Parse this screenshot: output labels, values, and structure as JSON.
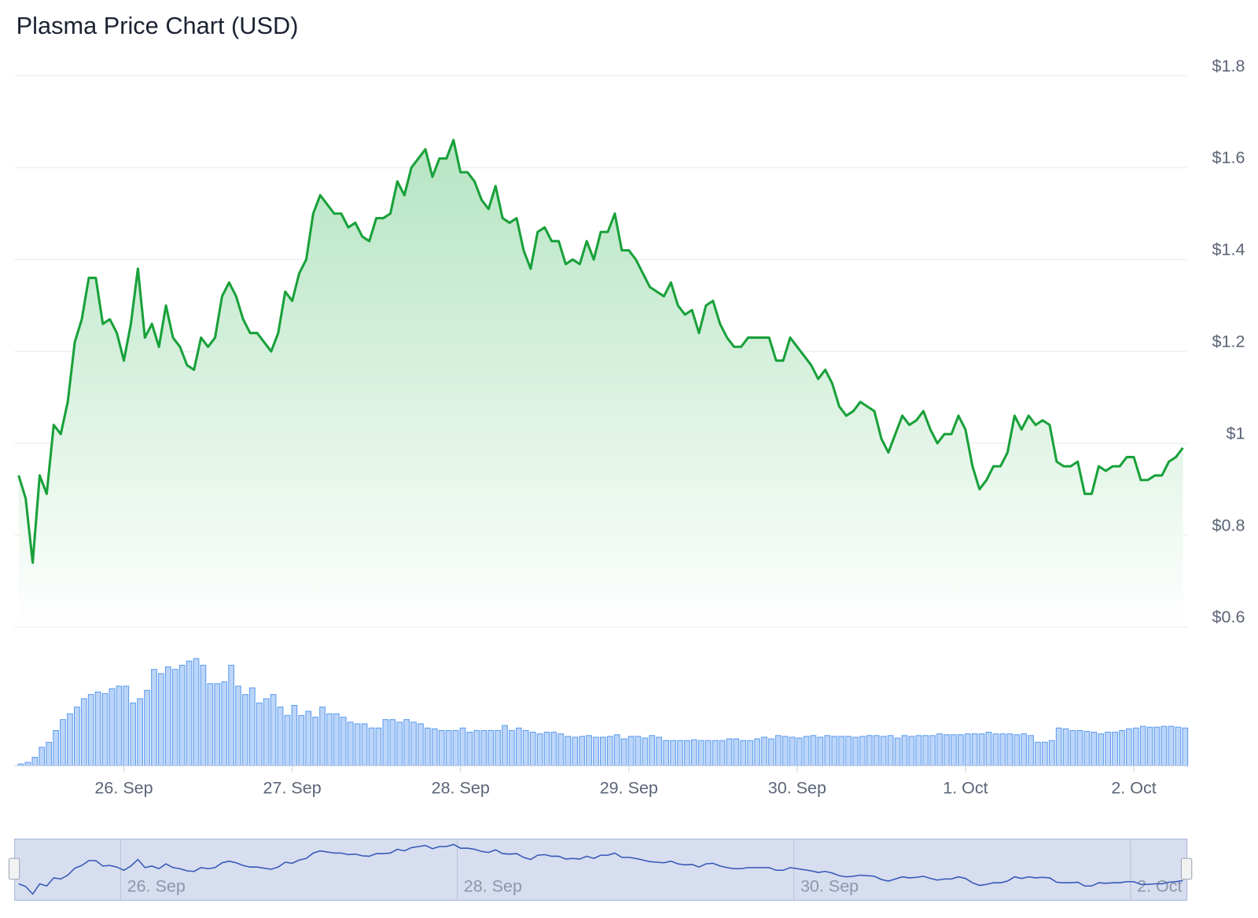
{
  "chart_data": {
    "type": "line",
    "title": "Plasma Price Chart (USD)",
    "series": [
      {
        "color": "#19a13a",
        "values": [
          0.93,
          0.88,
          0.74,
          0.93,
          0.89,
          1.04,
          1.02,
          1.09,
          1.22,
          1.27,
          1.36,
          1.36,
          1.26,
          1.27,
          1.24,
          1.18,
          1.26,
          1.38,
          1.23,
          1.26,
          1.21,
          1.3,
          1.23,
          1.21,
          1.17,
          1.16,
          1.23,
          1.21,
          1.23,
          1.32,
          1.35,
          1.32,
          1.27,
          1.24,
          1.24,
          1.22,
          1.2,
          1.24,
          1.33,
          1.31,
          1.37,
          1.4,
          1.5,
          1.54,
          1.52,
          1.5,
          1.5,
          1.47,
          1.48,
          1.45,
          1.44,
          1.49,
          1.49,
          1.5,
          1.57,
          1.54,
          1.6,
          1.62,
          1.64,
          1.58,
          1.62,
          1.62,
          1.66,
          1.59,
          1.59,
          1.57,
          1.53,
          1.51,
          1.56,
          1.49,
          1.48,
          1.49,
          1.42,
          1.38,
          1.46,
          1.47,
          1.44,
          1.44,
          1.39,
          1.4,
          1.39,
          1.44,
          1.4,
          1.46,
          1.46,
          1.5,
          1.42,
          1.42,
          1.4,
          1.37,
          1.34,
          1.33,
          1.32,
          1.35,
          1.3,
          1.28,
          1.29,
          1.24,
          1.3,
          1.31,
          1.26,
          1.23,
          1.21,
          1.21,
          1.23,
          1.23,
          1.23,
          1.23,
          1.18,
          1.18,
          1.23,
          1.21,
          1.19,
          1.17,
          1.14,
          1.16,
          1.13,
          1.08,
          1.06,
          1.07,
          1.09,
          1.08,
          1.07,
          1.01,
          0.98,
          1.02,
          1.06,
          1.04,
          1.05,
          1.07,
          1.03,
          1.0,
          1.02,
          1.02,
          1.06,
          1.03,
          0.95,
          0.9,
          0.92,
          0.95,
          0.95,
          0.98,
          1.06,
          1.03,
          1.06,
          1.04,
          1.05,
          1.04,
          0.96,
          0.95,
          0.95,
          0.96,
          0.89,
          0.89,
          0.95,
          0.94,
          0.95,
          0.95,
          0.97,
          0.97,
          0.92,
          0.92,
          0.93,
          0.93,
          0.96,
          0.97,
          0.99
        ]
      }
    ],
    "ylim": [
      0.6,
      1.8
    ],
    "yticks": [
      {
        "value": 0.6,
        "label": "$0.6"
      },
      {
        "value": 0.8,
        "label": "$0.8"
      },
      {
        "value": 1,
        "label": "$1"
      },
      {
        "value": 1.2,
        "label": "$1.2"
      },
      {
        "value": 1.4,
        "label": "$1.4"
      },
      {
        "value": 1.6,
        "label": "$1.6"
      },
      {
        "value": 1.8,
        "label": "$1.8"
      }
    ],
    "xlim": [
      0,
      166
    ],
    "xticks": [
      {
        "value": 15,
        "label": "26. Sep"
      },
      {
        "value": 39,
        "label": "27. Sep"
      },
      {
        "value": 63,
        "label": "28. Sep"
      },
      {
        "value": 87,
        "label": "29. Sep"
      },
      {
        "value": 111,
        "label": "30. Sep"
      },
      {
        "value": 135,
        "label": "1. Oct"
      },
      {
        "value": 159,
        "label": "2. Oct"
      }
    ],
    "grid": true,
    "volume": {
      "type": "bar",
      "color": "#bcd5f8",
      "ylim": [
        0,
        130
      ],
      "values": [
        2,
        4,
        10,
        22,
        28,
        42,
        55,
        62,
        70,
        80,
        85,
        88,
        86,
        92,
        95,
        95,
        75,
        80,
        90,
        115,
        110,
        118,
        115,
        120,
        125,
        128,
        120,
        98,
        98,
        100,
        120,
        95,
        85,
        93,
        75,
        80,
        85,
        70,
        60,
        72,
        60,
        65,
        58,
        70,
        62,
        62,
        58,
        52,
        50,
        50,
        45,
        45,
        55,
        55,
        52,
        55,
        52,
        50,
        45,
        44,
        42,
        42,
        42,
        45,
        40,
        42,
        42,
        42,
        42,
        48,
        42,
        45,
        42,
        40,
        38,
        40,
        40,
        38,
        35,
        34,
        35,
        36,
        34,
        34,
        35,
        37,
        32,
        35,
        35,
        33,
        36,
        34,
        30,
        30,
        30,
        30,
        31,
        30,
        30,
        30,
        30,
        32,
        32,
        30,
        30,
        32,
        34,
        32,
        36,
        35,
        34,
        33,
        35,
        36,
        34,
        36,
        35,
        35,
        35,
        34,
        35,
        36,
        36,
        35,
        36,
        33,
        36,
        35,
        36,
        36,
        36,
        38,
        37,
        37,
        37,
        38,
        38,
        38,
        40,
        38,
        38,
        38,
        37,
        38,
        36,
        28,
        28,
        30,
        45,
        44,
        42,
        42,
        41,
        40,
        38,
        40,
        40,
        42,
        44,
        45,
        47,
        46,
        46,
        47,
        47,
        46,
        45
      ]
    },
    "navigator": {
      "ylim": [
        0.7,
        1.7
      ],
      "xticks": [
        {
          "value": 15,
          "label": "26. Sep"
        },
        {
          "value": 63,
          "label": "28. Sep"
        },
        {
          "value": 111,
          "label": "30. Sep"
        },
        {
          "value": 159,
          "label": "2. Oct"
        }
      ]
    }
  }
}
